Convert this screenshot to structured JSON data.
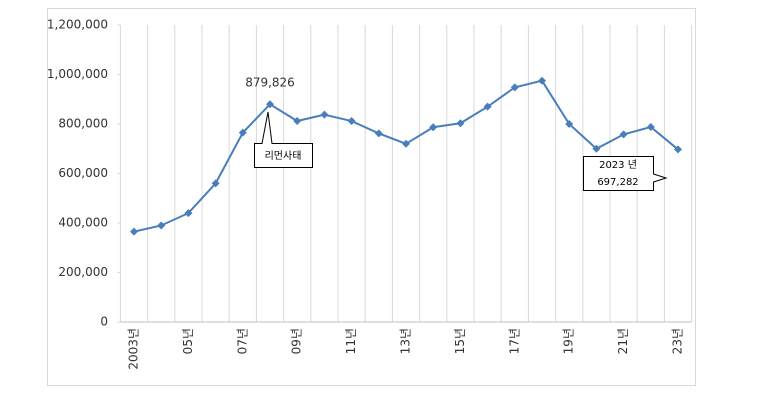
{
  "chart_data": {
    "type": "line",
    "categories": [
      "2003년",
      null,
      "05년",
      null,
      "07년",
      null,
      "09년",
      null,
      "11년",
      null,
      "13년",
      null,
      "15년",
      null,
      "17년",
      null,
      "19년",
      null,
      "21년",
      null,
      "23년"
    ],
    "values": [
      365000,
      390000,
      440000,
      560000,
      765000,
      879826,
      812000,
      838000,
      812000,
      762000,
      720000,
      787000,
      803000,
      870000,
      948000,
      975000,
      800000,
      700000,
      758000,
      788000,
      697282
    ],
    "value_labels": [
      null,
      null,
      null,
      null,
      null,
      "879,826",
      null,
      null,
      null,
      null,
      null,
      null,
      null,
      null,
      null,
      null,
      null,
      null,
      null,
      null,
      "697,282"
    ],
    "annotations": [
      "리먼사태",
      "2023 년"
    ],
    "color": "#4a7ebb",
    "ylim": [
      0,
      1200000
    ],
    "yticks": [
      0,
      {
        "value": 200000,
        "label": "200,000"
      },
      {
        "value": 400000,
        "label": "400,000"
      },
      {
        "value": 600000,
        "label": "600,000"
      },
      {
        "value": 800000,
        "label": "800,000"
      },
      {
        "value": 1000000,
        "label": "1,000,000"
      },
      {
        "value": 1200000,
        "label": "1,200,000"
      }
    ],
    "grid": true
  }
}
